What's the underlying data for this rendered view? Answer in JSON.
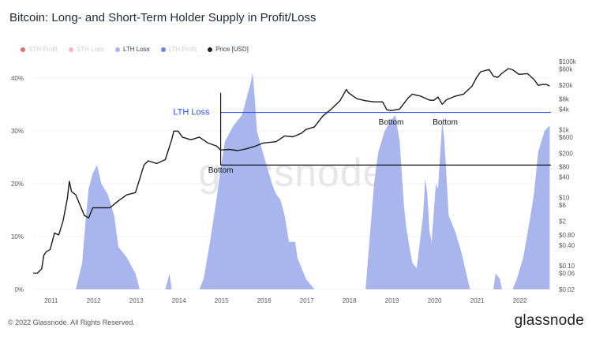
{
  "header": {
    "title": "Bitcoin: Long- and Short-Term Holder Supply in Profit/Loss"
  },
  "legend": [
    {
      "label": "STH Profit",
      "color": "#e23d3d",
      "active": false
    },
    {
      "label": "STH Loss",
      "color": "#f2a0a6",
      "active": false
    },
    {
      "label": "LTH Loss",
      "color": "#a9b6ee",
      "active": true
    },
    {
      "label": "LTH Profit",
      "color": "#3c5be0",
      "active": false
    },
    {
      "label": "Price [USD]",
      "color": "#222222",
      "active": true
    }
  ],
  "footer": {
    "copyright": "© 2022 Glassnode. All Rights Reserved.",
    "brand": "glassnode"
  },
  "watermark": "glassnode",
  "chart_data": {
    "type": "area",
    "x_ticks": [
      "2011",
      "2012",
      "2013",
      "2014",
      "2015",
      "2016",
      "2017",
      "2018",
      "2019",
      "2020",
      "2021",
      "2022"
    ],
    "y_left_ticks": [
      "0%",
      "10%",
      "20%",
      "30%",
      "40%"
    ],
    "y_right_ticks": [
      "$0.02",
      "$0.06",
      "$0.10",
      "$0.40",
      "$0.80",
      "$2",
      "$6",
      "$10",
      "$40",
      "$80",
      "$200",
      "$600",
      "$1k",
      "$4k",
      "$8k",
      "$20k",
      "$60k",
      "$100k"
    ],
    "annotations": {
      "lth_loss": "LTH Loss",
      "bottoms": [
        "Bottom",
        "Bottom",
        "Bottom"
      ]
    },
    "series": [
      {
        "name": "LTH Loss",
        "unit": "%",
        "points": [
          [
            2011.0,
            0
          ],
          [
            2011.6,
            0
          ],
          [
            2011.75,
            5
          ],
          [
            2011.82,
            12
          ],
          [
            2011.9,
            19
          ],
          [
            2012.0,
            22
          ],
          [
            2012.1,
            23.5
          ],
          [
            2012.2,
            20
          ],
          [
            2012.35,
            18
          ],
          [
            2012.5,
            14
          ],
          [
            2012.6,
            8
          ],
          [
            2012.8,
            6
          ],
          [
            2013.0,
            3
          ],
          [
            2013.1,
            0
          ],
          [
            2013.7,
            0
          ],
          [
            2013.8,
            3
          ],
          [
            2013.85,
            0
          ],
          [
            2013.9,
            0
          ],
          [
            2014.5,
            0
          ],
          [
            2014.6,
            2
          ],
          [
            2014.75,
            9
          ],
          [
            2014.9,
            17
          ],
          [
            2015.0,
            23
          ],
          [
            2015.1,
            28
          ],
          [
            2015.3,
            31
          ],
          [
            2015.5,
            33
          ],
          [
            2015.6,
            36
          ],
          [
            2015.7,
            39
          ],
          [
            2015.75,
            41
          ],
          [
            2015.8,
            36
          ],
          [
            2015.85,
            30
          ],
          [
            2015.95,
            27
          ],
          [
            2016.2,
            20
          ],
          [
            2016.3,
            18
          ],
          [
            2016.4,
            17
          ],
          [
            2016.5,
            14
          ],
          [
            2016.6,
            9
          ],
          [
            2016.75,
            9
          ],
          [
            2016.8,
            6
          ],
          [
            2016.9,
            4
          ],
          [
            2017.0,
            2
          ],
          [
            2017.2,
            0
          ],
          [
            2018.4,
            0
          ],
          [
            2018.5,
            10
          ],
          [
            2018.6,
            20
          ],
          [
            2018.7,
            26
          ],
          [
            2018.85,
            30
          ],
          [
            2019.0,
            32
          ],
          [
            2019.1,
            33
          ],
          [
            2019.2,
            28
          ],
          [
            2019.3,
            16
          ],
          [
            2019.35,
            12
          ],
          [
            2019.45,
            7
          ],
          [
            2019.5,
            5
          ],
          [
            2019.6,
            4
          ],
          [
            2019.75,
            14
          ],
          [
            2019.8,
            21
          ],
          [
            2019.85,
            18
          ],
          [
            2019.9,
            11
          ],
          [
            2019.95,
            9
          ],
          [
            2020.05,
            20
          ],
          [
            2020.1,
            19
          ],
          [
            2020.2,
            32
          ],
          [
            2020.25,
            28
          ],
          [
            2020.35,
            14
          ],
          [
            2020.5,
            11
          ],
          [
            2020.65,
            7
          ],
          [
            2020.85,
            0
          ],
          [
            2021.4,
            0
          ],
          [
            2021.45,
            3
          ],
          [
            2021.55,
            2
          ],
          [
            2021.6,
            0
          ],
          [
            2021.85,
            0
          ],
          [
            2021.95,
            2
          ],
          [
            2022.1,
            6
          ],
          [
            2022.25,
            13
          ],
          [
            2022.35,
            18
          ],
          [
            2022.45,
            26
          ],
          [
            2022.6,
            30
          ],
          [
            2022.72,
            31
          ],
          [
            2022.72,
            0
          ]
        ]
      },
      {
        "name": "Price [USD]",
        "unit": "USD",
        "points": [
          [
            2010.6,
            0.06
          ],
          [
            2010.7,
            0.06
          ],
          [
            2010.8,
            0.08
          ],
          [
            2010.85,
            0.2
          ],
          [
            2010.9,
            0.25
          ],
          [
            2011.0,
            0.3
          ],
          [
            2011.1,
            0.9
          ],
          [
            2011.2,
            0.8
          ],
          [
            2011.3,
            2
          ],
          [
            2011.4,
            9
          ],
          [
            2011.45,
            30
          ],
          [
            2011.5,
            15
          ],
          [
            2011.6,
            12
          ],
          [
            2011.7,
            6
          ],
          [
            2011.8,
            3
          ],
          [
            2011.9,
            2.5
          ],
          [
            2012.0,
            5
          ],
          [
            2012.2,
            5
          ],
          [
            2012.4,
            5
          ],
          [
            2012.6,
            8
          ],
          [
            2012.8,
            12
          ],
          [
            2013.0,
            14
          ],
          [
            2013.2,
            90
          ],
          [
            2013.3,
            120
          ],
          [
            2013.5,
            100
          ],
          [
            2013.7,
            130
          ],
          [
            2013.85,
            500
          ],
          [
            2013.9,
            900
          ],
          [
            2014.0,
            900
          ],
          [
            2014.1,
            600
          ],
          [
            2014.3,
            500
          ],
          [
            2014.5,
            600
          ],
          [
            2014.7,
            400
          ],
          [
            2014.9,
            330
          ],
          [
            2015.0,
            250
          ],
          [
            2015.2,
            260
          ],
          [
            2015.4,
            240
          ],
          [
            2015.6,
            270
          ],
          [
            2015.8,
            320
          ],
          [
            2016.0,
            400
          ],
          [
            2016.3,
            440
          ],
          [
            2016.5,
            650
          ],
          [
            2016.7,
            610
          ],
          [
            2016.9,
            780
          ],
          [
            2017.0,
            1000
          ],
          [
            2017.2,
            1200
          ],
          [
            2017.4,
            2500
          ],
          [
            2017.6,
            4000
          ],
          [
            2017.8,
            7000
          ],
          [
            2017.95,
            15000
          ],
          [
            2018.0,
            12000
          ],
          [
            2018.2,
            8000
          ],
          [
            2018.4,
            7000
          ],
          [
            2018.6,
            6500
          ],
          [
            2018.8,
            6500
          ],
          [
            2018.9,
            3800
          ],
          [
            2019.0,
            3600
          ],
          [
            2019.2,
            4000
          ],
          [
            2019.4,
            8500
          ],
          [
            2019.5,
            11000
          ],
          [
            2019.7,
            9500
          ],
          [
            2019.9,
            7300
          ],
          [
            2020.0,
            7200
          ],
          [
            2020.1,
            9000
          ],
          [
            2020.2,
            5500
          ],
          [
            2020.3,
            7500
          ],
          [
            2020.5,
            9500
          ],
          [
            2020.7,
            11000
          ],
          [
            2020.9,
            19000
          ],
          [
            2021.0,
            33000
          ],
          [
            2021.1,
            50000
          ],
          [
            2021.3,
            58000
          ],
          [
            2021.4,
            37000
          ],
          [
            2021.5,
            34000
          ],
          [
            2021.6,
            45000
          ],
          [
            2021.75,
            62000
          ],
          [
            2021.85,
            57000
          ],
          [
            2022.0,
            42000
          ],
          [
            2022.2,
            44000
          ],
          [
            2022.35,
            30000
          ],
          [
            2022.45,
            20000
          ],
          [
            2022.55,
            21000
          ],
          [
            2022.65,
            21000
          ],
          [
            2022.72,
            19000
          ]
        ]
      }
    ]
  }
}
